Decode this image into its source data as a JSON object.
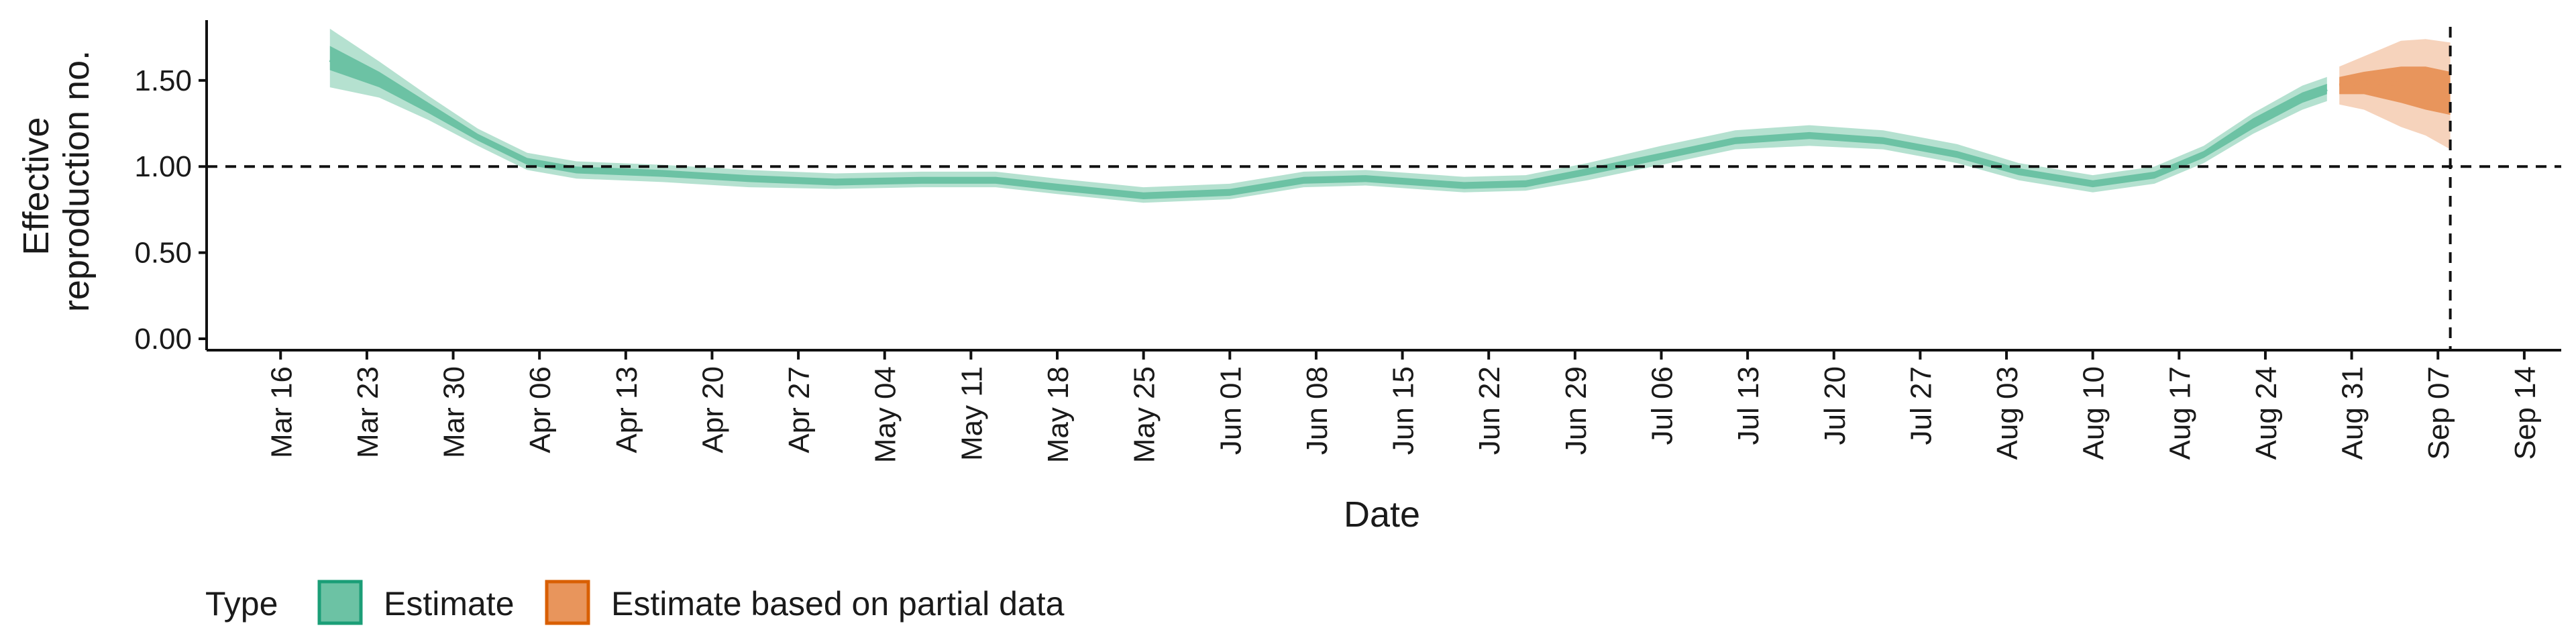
{
  "chart_data": {
    "type": "area",
    "xlabel": "Date",
    "ylabel_lines": [
      "Effective",
      "reproduction no."
    ],
    "ylim": [
      0,
      1.85
    ],
    "y_ticks": [
      0.0,
      0.5,
      1.0,
      1.5
    ],
    "y_tick_labels": [
      "0.00",
      "0.50",
      "1.00",
      "1.50"
    ],
    "xlim": [
      "2020-03-10",
      "2020-09-17"
    ],
    "x_ticks": [
      "2020-03-16",
      "2020-03-23",
      "2020-03-30",
      "2020-04-06",
      "2020-04-13",
      "2020-04-20",
      "2020-04-27",
      "2020-05-04",
      "2020-05-11",
      "2020-05-18",
      "2020-05-25",
      "2020-06-01",
      "2020-06-08",
      "2020-06-15",
      "2020-06-22",
      "2020-06-29",
      "2020-07-06",
      "2020-07-13",
      "2020-07-20",
      "2020-07-27",
      "2020-08-03",
      "2020-08-10",
      "2020-08-17",
      "2020-08-24",
      "2020-08-31",
      "2020-09-07",
      "2020-09-14"
    ],
    "x_tick_labels": [
      "Mar 16",
      "Mar 23",
      "Mar 30",
      "Apr 06",
      "Apr 13",
      "Apr 20",
      "Apr 27",
      "May 04",
      "May 11",
      "May 18",
      "May 25",
      "Jun 01",
      "Jun 08",
      "Jun 15",
      "Jun 22",
      "Jun 29",
      "Jul 06",
      "Jul 13",
      "Jul 20",
      "Jul 27",
      "Aug 03",
      "Aug 10",
      "Aug 17",
      "Aug 24",
      "Aug 31",
      "Sep 07",
      "Sep 14"
    ],
    "reference_lines": {
      "horizontal_y": 1.0,
      "vertical_x": "2020-09-08",
      "style": "dashed"
    },
    "series": [
      {
        "name": "Estimate",
        "color_outer": "#a8dcc8",
        "color_inner": "#6cc2a4",
        "points": [
          {
            "x": "2020-03-20",
            "median": 1.62,
            "lo50": 1.56,
            "hi50": 1.7,
            "lo90": 1.46,
            "hi90": 1.8
          },
          {
            "x": "2020-03-24",
            "median": 1.5,
            "lo50": 1.46,
            "hi50": 1.55,
            "lo90": 1.4,
            "hi90": 1.61
          },
          {
            "x": "2020-03-28",
            "median": 1.34,
            "lo50": 1.31,
            "hi50": 1.37,
            "lo90": 1.27,
            "hi90": 1.41
          },
          {
            "x": "2020-04-01",
            "median": 1.17,
            "lo50": 1.15,
            "hi50": 1.19,
            "lo90": 1.12,
            "hi90": 1.22
          },
          {
            "x": "2020-04-05",
            "median": 1.03,
            "lo50": 1.01,
            "hi50": 1.05,
            "lo90": 0.98,
            "hi90": 1.08
          },
          {
            "x": "2020-04-09",
            "median": 0.98,
            "lo50": 0.96,
            "hi50": 1.0,
            "lo90": 0.93,
            "hi90": 1.03
          },
          {
            "x": "2020-04-16",
            "median": 0.96,
            "lo50": 0.94,
            "hi50": 0.98,
            "lo90": 0.91,
            "hi90": 1.01
          },
          {
            "x": "2020-04-23",
            "median": 0.93,
            "lo50": 0.91,
            "hi50": 0.95,
            "lo90": 0.88,
            "hi90": 0.98
          },
          {
            "x": "2020-04-30",
            "median": 0.91,
            "lo50": 0.89,
            "hi50": 0.93,
            "lo90": 0.87,
            "hi90": 0.96
          },
          {
            "x": "2020-05-07",
            "median": 0.92,
            "lo50": 0.9,
            "hi50": 0.94,
            "lo90": 0.88,
            "hi90": 0.97
          },
          {
            "x": "2020-05-13",
            "median": 0.92,
            "lo50": 0.9,
            "hi50": 0.94,
            "lo90": 0.88,
            "hi90": 0.97
          },
          {
            "x": "2020-05-18",
            "median": 0.88,
            "lo50": 0.86,
            "hi50": 0.9,
            "lo90": 0.84,
            "hi90": 0.93
          },
          {
            "x": "2020-05-25",
            "median": 0.83,
            "lo50": 0.81,
            "hi50": 0.85,
            "lo90": 0.79,
            "hi90": 0.88
          },
          {
            "x": "2020-06-01",
            "median": 0.85,
            "lo50": 0.83,
            "hi50": 0.87,
            "lo90": 0.81,
            "hi90": 0.9
          },
          {
            "x": "2020-06-07",
            "median": 0.92,
            "lo50": 0.9,
            "hi50": 0.94,
            "lo90": 0.88,
            "hi90": 0.97
          },
          {
            "x": "2020-06-12",
            "median": 0.93,
            "lo50": 0.91,
            "hi50": 0.95,
            "lo90": 0.89,
            "hi90": 0.98
          },
          {
            "x": "2020-06-20",
            "median": 0.89,
            "lo50": 0.87,
            "hi50": 0.91,
            "lo90": 0.85,
            "hi90": 0.94
          },
          {
            "x": "2020-06-25",
            "median": 0.9,
            "lo50": 0.88,
            "hi50": 0.92,
            "lo90": 0.86,
            "hi90": 0.95
          },
          {
            "x": "2020-06-30",
            "median": 0.97,
            "lo50": 0.95,
            "hi50": 0.99,
            "lo90": 0.92,
            "hi90": 1.02
          },
          {
            "x": "2020-07-06",
            "median": 1.06,
            "lo50": 1.04,
            "hi50": 1.08,
            "lo90": 1.01,
            "hi90": 1.12
          },
          {
            "x": "2020-07-12",
            "median": 1.15,
            "lo50": 1.13,
            "hi50": 1.17,
            "lo90": 1.1,
            "hi90": 1.21
          },
          {
            "x": "2020-07-18",
            "median": 1.18,
            "lo50": 1.16,
            "hi50": 1.2,
            "lo90": 1.12,
            "hi90": 1.24
          },
          {
            "x": "2020-07-24",
            "median": 1.15,
            "lo50": 1.13,
            "hi50": 1.17,
            "lo90": 1.1,
            "hi90": 1.21
          },
          {
            "x": "2020-07-30",
            "median": 1.07,
            "lo50": 1.05,
            "hi50": 1.09,
            "lo90": 1.02,
            "hi90": 1.13
          },
          {
            "x": "2020-08-04",
            "median": 0.97,
            "lo50": 0.95,
            "hi50": 0.99,
            "lo90": 0.92,
            "hi90": 1.02
          },
          {
            "x": "2020-08-10",
            "median": 0.9,
            "lo50": 0.88,
            "hi50": 0.92,
            "lo90": 0.85,
            "hi90": 0.95
          },
          {
            "x": "2020-08-15",
            "median": 0.95,
            "lo50": 0.93,
            "hi50": 0.97,
            "lo90": 0.9,
            "hi90": 1.0
          },
          {
            "x": "2020-08-19",
            "median": 1.07,
            "lo50": 1.05,
            "hi50": 1.09,
            "lo90": 1.02,
            "hi90": 1.12
          },
          {
            "x": "2020-08-23",
            "median": 1.25,
            "lo50": 1.22,
            "hi50": 1.28,
            "lo90": 1.19,
            "hi90": 1.31
          },
          {
            "x": "2020-08-27",
            "median": 1.4,
            "lo50": 1.37,
            "hi50": 1.43,
            "lo90": 1.33,
            "hi90": 1.47
          },
          {
            "x": "2020-08-29",
            "median": 1.45,
            "lo50": 1.42,
            "hi50": 1.48,
            "lo90": 1.38,
            "hi90": 1.52
          }
        ]
      },
      {
        "name": "Estimate based on partial data",
        "color_outer": "#f4cbb0",
        "color_inner": "#e8955c",
        "points": [
          {
            "x": "2020-08-30",
            "median": 1.47,
            "lo50": 1.42,
            "hi50": 1.52,
            "lo90": 1.36,
            "hi90": 1.58
          },
          {
            "x": "2020-09-01",
            "median": 1.49,
            "lo50": 1.42,
            "hi50": 1.55,
            "lo90": 1.33,
            "hi90": 1.64
          },
          {
            "x": "2020-09-04",
            "median": 1.48,
            "lo50": 1.37,
            "hi50": 1.58,
            "lo90": 1.23,
            "hi90": 1.73
          },
          {
            "x": "2020-09-06",
            "median": 1.45,
            "lo50": 1.33,
            "hi50": 1.58,
            "lo90": 1.18,
            "hi90": 1.74
          },
          {
            "x": "2020-09-08",
            "median": 1.42,
            "lo50": 1.3,
            "hi50": 1.55,
            "lo90": 1.1,
            "hi90": 1.72
          }
        ]
      }
    ],
    "legend": {
      "title": "Type",
      "placement": "bottom-left",
      "items": [
        {
          "label": "Estimate",
          "fill": "#6cc2a4",
          "border": "#1b9e77"
        },
        {
          "label": "Estimate based on partial data",
          "fill": "#e8955c",
          "border": "#d95f02"
        }
      ]
    }
  }
}
